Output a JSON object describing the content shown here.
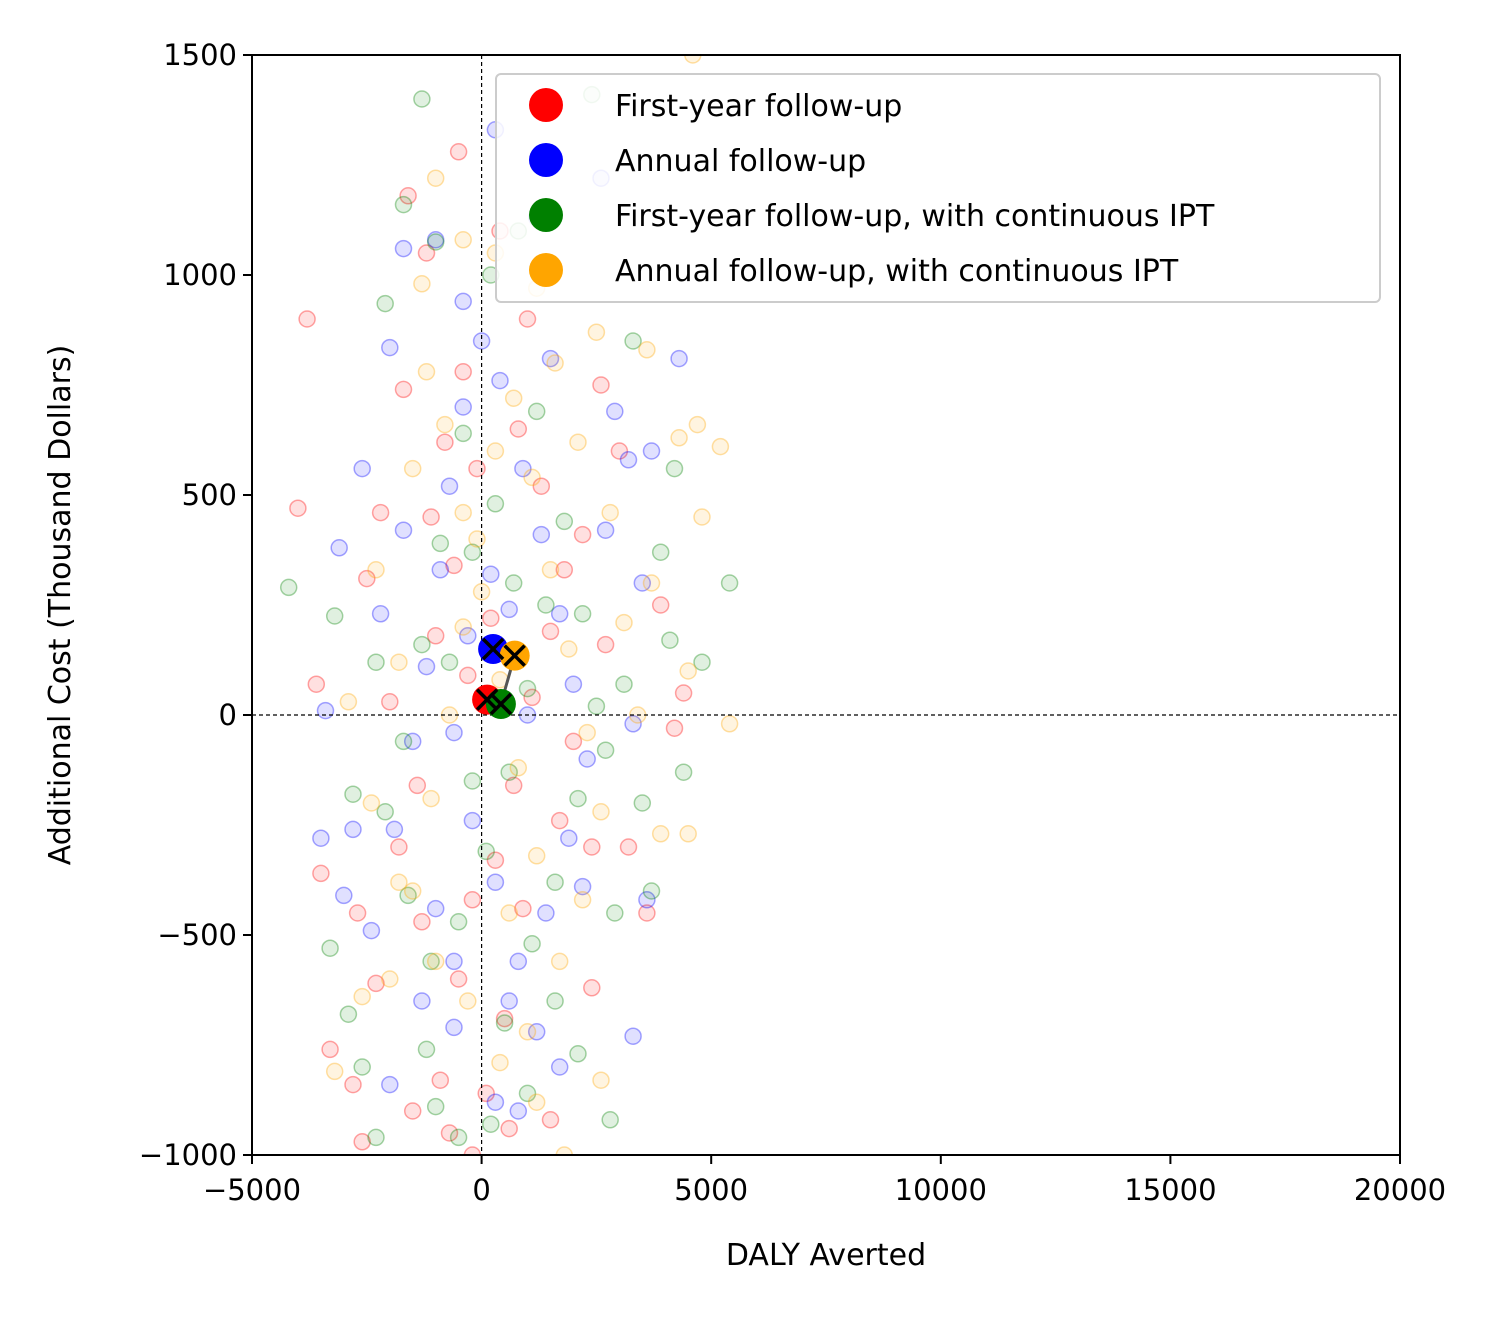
{
  "chart_data": {
    "type": "scatter",
    "title": "",
    "xlabel": "DALY Averted",
    "ylabel": "Additional Cost (Thousand Dollars)",
    "xlim": [
      -5000,
      20000
    ],
    "ylim": [
      -1000,
      1500
    ],
    "xticks": [
      -5000,
      0,
      5000,
      10000,
      15000,
      20000
    ],
    "xtick_labels": [
      "−5000",
      "0",
      "5000",
      "10000",
      "15000",
      "20000"
    ],
    "yticks": [
      -1000,
      -500,
      0,
      500,
      1000,
      1500
    ],
    "ytick_labels": [
      "−1000",
      "−500",
      "0",
      "500",
      "1000",
      "1500"
    ],
    "reference_lines": {
      "x": 0,
      "y": 0,
      "style": "dashed"
    },
    "grid": false,
    "legend_position": "top-right",
    "series": [
      {
        "name": "First-year follow-up",
        "color": "#ff0000",
        "mean": [
          120,
          35
        ],
        "samples": [
          [
            -3800,
            900
          ],
          [
            -4000,
            470
          ],
          [
            -3600,
            70
          ],
          [
            -3300,
            -760
          ],
          [
            -3500,
            -360
          ],
          [
            -2800,
            -840
          ],
          [
            -2600,
            -970
          ],
          [
            -1600,
            1180
          ],
          [
            -1200,
            1050
          ],
          [
            -500,
            1280
          ],
          [
            -2200,
            460
          ],
          [
            -2500,
            310
          ],
          [
            -1500,
            -900
          ],
          [
            -2300,
            -610
          ],
          [
            -900,
            -830
          ],
          [
            -700,
            -950
          ],
          [
            -200,
            -1000
          ],
          [
            600,
            -940
          ],
          [
            1500,
            -920
          ],
          [
            2400,
            -300
          ],
          [
            3200,
            -300
          ],
          [
            3600,
            -450
          ],
          [
            4200,
            -30
          ],
          [
            4400,
            50
          ],
          [
            3900,
            250
          ],
          [
            3000,
            600
          ],
          [
            2600,
            750
          ],
          [
            1000,
            900
          ],
          [
            400,
            1100
          ],
          [
            -100,
            560
          ],
          [
            -600,
            340
          ],
          [
            -1000,
            180
          ],
          [
            -1400,
            -160
          ],
          [
            -1800,
            -300
          ],
          [
            -1300,
            -470
          ],
          [
            -500,
            -600
          ],
          [
            -200,
            -420
          ],
          [
            300,
            -330
          ],
          [
            700,
            -160
          ],
          [
            1100,
            40
          ],
          [
            1500,
            190
          ],
          [
            1800,
            330
          ],
          [
            2000,
            -60
          ],
          [
            1700,
            -240
          ],
          [
            900,
            -440
          ],
          [
            500,
            -690
          ],
          [
            100,
            -860
          ],
          [
            -300,
            90
          ],
          [
            200,
            220
          ],
          [
            -800,
            620
          ],
          [
            -1100,
            450
          ],
          [
            1300,
            520
          ],
          [
            2200,
            410
          ],
          [
            2700,
            160
          ],
          [
            -2000,
            30
          ],
          [
            -2700,
            -450
          ],
          [
            -1700,
            740
          ],
          [
            -400,
            780
          ],
          [
            800,
            650
          ],
          [
            2400,
            -620
          ]
        ]
      },
      {
        "name": "Annual follow-up",
        "color": "#0000ff",
        "mean": [
          250,
          150
        ],
        "samples": [
          [
            -3400,
            10
          ],
          [
            -3500,
            -280
          ],
          [
            -3100,
            380
          ],
          [
            -2600,
            560
          ],
          [
            -2000,
            835
          ],
          [
            -1700,
            1060
          ],
          [
            -1000,
            1080
          ],
          [
            -400,
            940
          ],
          [
            300,
            1330
          ],
          [
            1200,
            1130
          ],
          [
            2600,
            1220
          ],
          [
            3200,
            580
          ],
          [
            4300,
            810
          ],
          [
            3700,
            600
          ],
          [
            3500,
            300
          ],
          [
            3300,
            -20
          ],
          [
            3600,
            -420
          ],
          [
            3300,
            -730
          ],
          [
            2200,
            -390
          ],
          [
            1700,
            -800
          ],
          [
            800,
            -900
          ],
          [
            300,
            -880
          ],
          [
            -600,
            -710
          ],
          [
            -1300,
            -650
          ],
          [
            -2000,
            -840
          ],
          [
            -2800,
            -260
          ],
          [
            -3000,
            -410
          ],
          [
            -2400,
            -490
          ],
          [
            -1900,
            -260
          ],
          [
            -1500,
            -60
          ],
          [
            -1200,
            110
          ],
          [
            -900,
            330
          ],
          [
            -700,
            520
          ],
          [
            -400,
            700
          ],
          [
            0,
            850
          ],
          [
            400,
            760
          ],
          [
            900,
            560
          ],
          [
            1300,
            410
          ],
          [
            1700,
            230
          ],
          [
            2000,
            70
          ],
          [
            2300,
            -100
          ],
          [
            1900,
            -280
          ],
          [
            1400,
            -450
          ],
          [
            800,
            -560
          ],
          [
            300,
            -380
          ],
          [
            -200,
            -240
          ],
          [
            -600,
            -40
          ],
          [
            -300,
            180
          ],
          [
            200,
            320
          ],
          [
            600,
            240
          ],
          [
            1000,
            0
          ],
          [
            -1700,
            420
          ],
          [
            -2200,
            230
          ],
          [
            2700,
            420
          ],
          [
            2900,
            690
          ],
          [
            -1000,
            -440
          ],
          [
            -600,
            -560
          ],
          [
            600,
            -650
          ],
          [
            1200,
            -720
          ],
          [
            1500,
            810
          ]
        ]
      },
      {
        "name": "First-year follow-up, with continuous IPT",
        "color": "#008000",
        "mean": [
          420,
          25
        ],
        "samples": [
          [
            -1300,
            1400
          ],
          [
            -1700,
            1160
          ],
          [
            -2100,
            935
          ],
          [
            -1000,
            1075
          ],
          [
            -4200,
            290
          ],
          [
            -3200,
            225
          ],
          [
            -3300,
            -530
          ],
          [
            -2900,
            -680
          ],
          [
            -2600,
            -800
          ],
          [
            -2300,
            -960
          ],
          [
            -1000,
            -890
          ],
          [
            -500,
            -960
          ],
          [
            200,
            -930
          ],
          [
            1000,
            -860
          ],
          [
            2100,
            -770
          ],
          [
            2800,
            -920
          ],
          [
            2900,
            -450
          ],
          [
            3500,
            -200
          ],
          [
            4400,
            -130
          ],
          [
            3700,
            -400
          ],
          [
            4100,
            170
          ],
          [
            4800,
            120
          ],
          [
            3900,
            370
          ],
          [
            4200,
            560
          ],
          [
            3300,
            850
          ],
          [
            2400,
            1410
          ],
          [
            800,
            1100
          ],
          [
            200,
            1000
          ],
          [
            -400,
            640
          ],
          [
            -900,
            390
          ],
          [
            -1300,
            160
          ],
          [
            -1700,
            -60
          ],
          [
            -2100,
            -220
          ],
          [
            -1600,
            -410
          ],
          [
            -1100,
            -560
          ],
          [
            -500,
            -470
          ],
          [
            100,
            -310
          ],
          [
            600,
            -130
          ],
          [
            1000,
            60
          ],
          [
            1400,
            250
          ],
          [
            1800,
            440
          ],
          [
            2200,
            230
          ],
          [
            2500,
            20
          ],
          [
            2100,
            -190
          ],
          [
            1600,
            -380
          ],
          [
            1100,
            -520
          ],
          [
            500,
            -700
          ],
          [
            -200,
            -150
          ],
          [
            -700,
            120
          ],
          [
            -200,
            370
          ],
          [
            300,
            480
          ],
          [
            700,
            300
          ],
          [
            1200,
            690
          ],
          [
            2700,
            -80
          ],
          [
            -2300,
            120
          ],
          [
            -2800,
            -180
          ],
          [
            -1200,
            -760
          ],
          [
            1600,
            -650
          ],
          [
            3100,
            70
          ],
          [
            5400,
            300
          ]
        ]
      },
      {
        "name": "Annual follow-up, with continuous IPT",
        "color": "#ffa500",
        "mean": [
          720,
          135
        ],
        "samples": [
          [
            4600,
            1500
          ],
          [
            -1000,
            1220
          ],
          [
            -1300,
            980
          ],
          [
            -400,
            1080
          ],
          [
            300,
            1050
          ],
          [
            1200,
            970
          ],
          [
            2500,
            870
          ],
          [
            3600,
            830
          ],
          [
            4300,
            630
          ],
          [
            4700,
            660
          ],
          [
            5200,
            610
          ],
          [
            4800,
            450
          ],
          [
            3700,
            300
          ],
          [
            4500,
            100
          ],
          [
            5400,
            -20
          ],
          [
            4500,
            -270
          ],
          [
            3900,
            -270
          ],
          [
            2600,
            -830
          ],
          [
            1800,
            -1000
          ],
          [
            1200,
            -880
          ],
          [
            400,
            -790
          ],
          [
            -300,
            -650
          ],
          [
            -1000,
            -560
          ],
          [
            -1800,
            -380
          ],
          [
            -2400,
            -200
          ],
          [
            -2900,
            30
          ],
          [
            -3200,
            -810
          ],
          [
            -2600,
            -640
          ],
          [
            -2000,
            -600
          ],
          [
            -1500,
            -400
          ],
          [
            -1100,
            -190
          ],
          [
            -700,
            0
          ],
          [
            -400,
            200
          ],
          [
            -100,
            400
          ],
          [
            300,
            600
          ],
          [
            700,
            720
          ],
          [
            1100,
            540
          ],
          [
            1500,
            330
          ],
          [
            1900,
            150
          ],
          [
            2300,
            -40
          ],
          [
            2600,
            -220
          ],
          [
            2200,
            -420
          ],
          [
            1700,
            -560
          ],
          [
            1200,
            -320
          ],
          [
            800,
            -120
          ],
          [
            400,
            80
          ],
          [
            0,
            280
          ],
          [
            -400,
            460
          ],
          [
            -800,
            660
          ],
          [
            -1200,
            780
          ],
          [
            1600,
            800
          ],
          [
            2100,
            620
          ],
          [
            2800,
            460
          ],
          [
            3100,
            210
          ],
          [
            3400,
            0
          ],
          [
            -1800,
            120
          ],
          [
            -2300,
            330
          ],
          [
            -1500,
            560
          ],
          [
            600,
            -450
          ],
          [
            1000,
            -720
          ]
        ]
      }
    ]
  }
}
